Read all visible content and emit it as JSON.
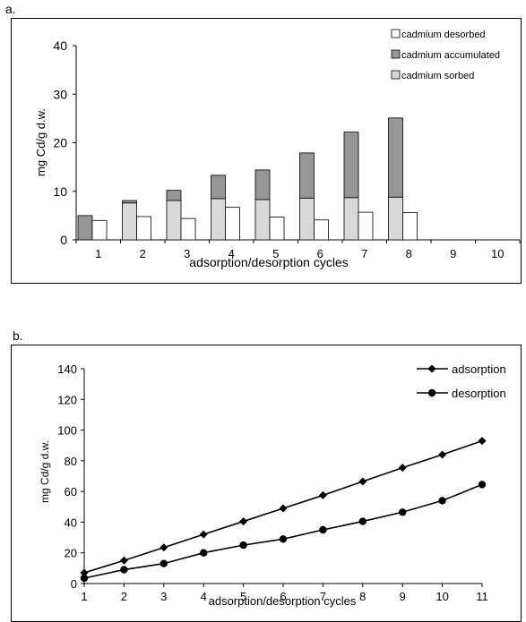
{
  "panels": {
    "a_label": "a.",
    "b_label": "b."
  },
  "chart_data": [
    {
      "type": "bar",
      "stacking": "stacked-plus-side",
      "categories": [
        "1",
        "2",
        "3",
        "4",
        "5",
        "6",
        "7",
        "8",
        "9",
        "10"
      ],
      "series": [
        {
          "name": "cadmium sorbed",
          "values": [
            0,
            7.6,
            8.1,
            8.5,
            8.3,
            8.6,
            8.7,
            8.8,
            0,
            0
          ],
          "color": "#d9d9d9"
        },
        {
          "name": "cadmium accumulated",
          "values": [
            5.0,
            0.5,
            2.1,
            4.8,
            6.1,
            9.3,
            13.5,
            16.3,
            0,
            0
          ],
          "color": "#969696"
        },
        {
          "name": "cadmium desorbed",
          "values": [
            4.0,
            4.8,
            4.4,
            6.7,
            4.7,
            4.1,
            5.7,
            5.6,
            0,
            0
          ],
          "color": "#ffffff"
        }
      ],
      "xlabel": "adsorption/desorption cycles",
      "ylabel": "mg Cd/g d.w.",
      "ylim": [
        0,
        40
      ],
      "yticks": [
        "0",
        "10",
        "20",
        "30",
        "40"
      ],
      "legend": "top-right",
      "grid": false
    },
    {
      "type": "line",
      "x": [
        1,
        2,
        3,
        4,
        5,
        6,
        7,
        8,
        9,
        10,
        11
      ],
      "xticks": [
        "1",
        "2",
        "3",
        "4",
        "5",
        "6",
        "7",
        "8",
        "9",
        "10",
        "11"
      ],
      "series": [
        {
          "name": "adsorption",
          "marker": "diamond",
          "values": [
            7,
            15,
            23.5,
            32,
            40.5,
            49,
            57.5,
            66.5,
            75.5,
            84,
            93
          ]
        },
        {
          "name": "desorption",
          "marker": "circle",
          "values": [
            3.5,
            9,
            13,
            20,
            25,
            29,
            35,
            40.5,
            46.5,
            54,
            64.5
          ]
        }
      ],
      "xlabel": "adsorption/desorption cycles",
      "ylabel": "mg Cd/g d.w.",
      "ylim": [
        0,
        140
      ],
      "yticks": [
        "0",
        "20",
        "40",
        "60",
        "80",
        "100",
        "120",
        "140"
      ],
      "legend": "top-right",
      "grid": false
    }
  ]
}
